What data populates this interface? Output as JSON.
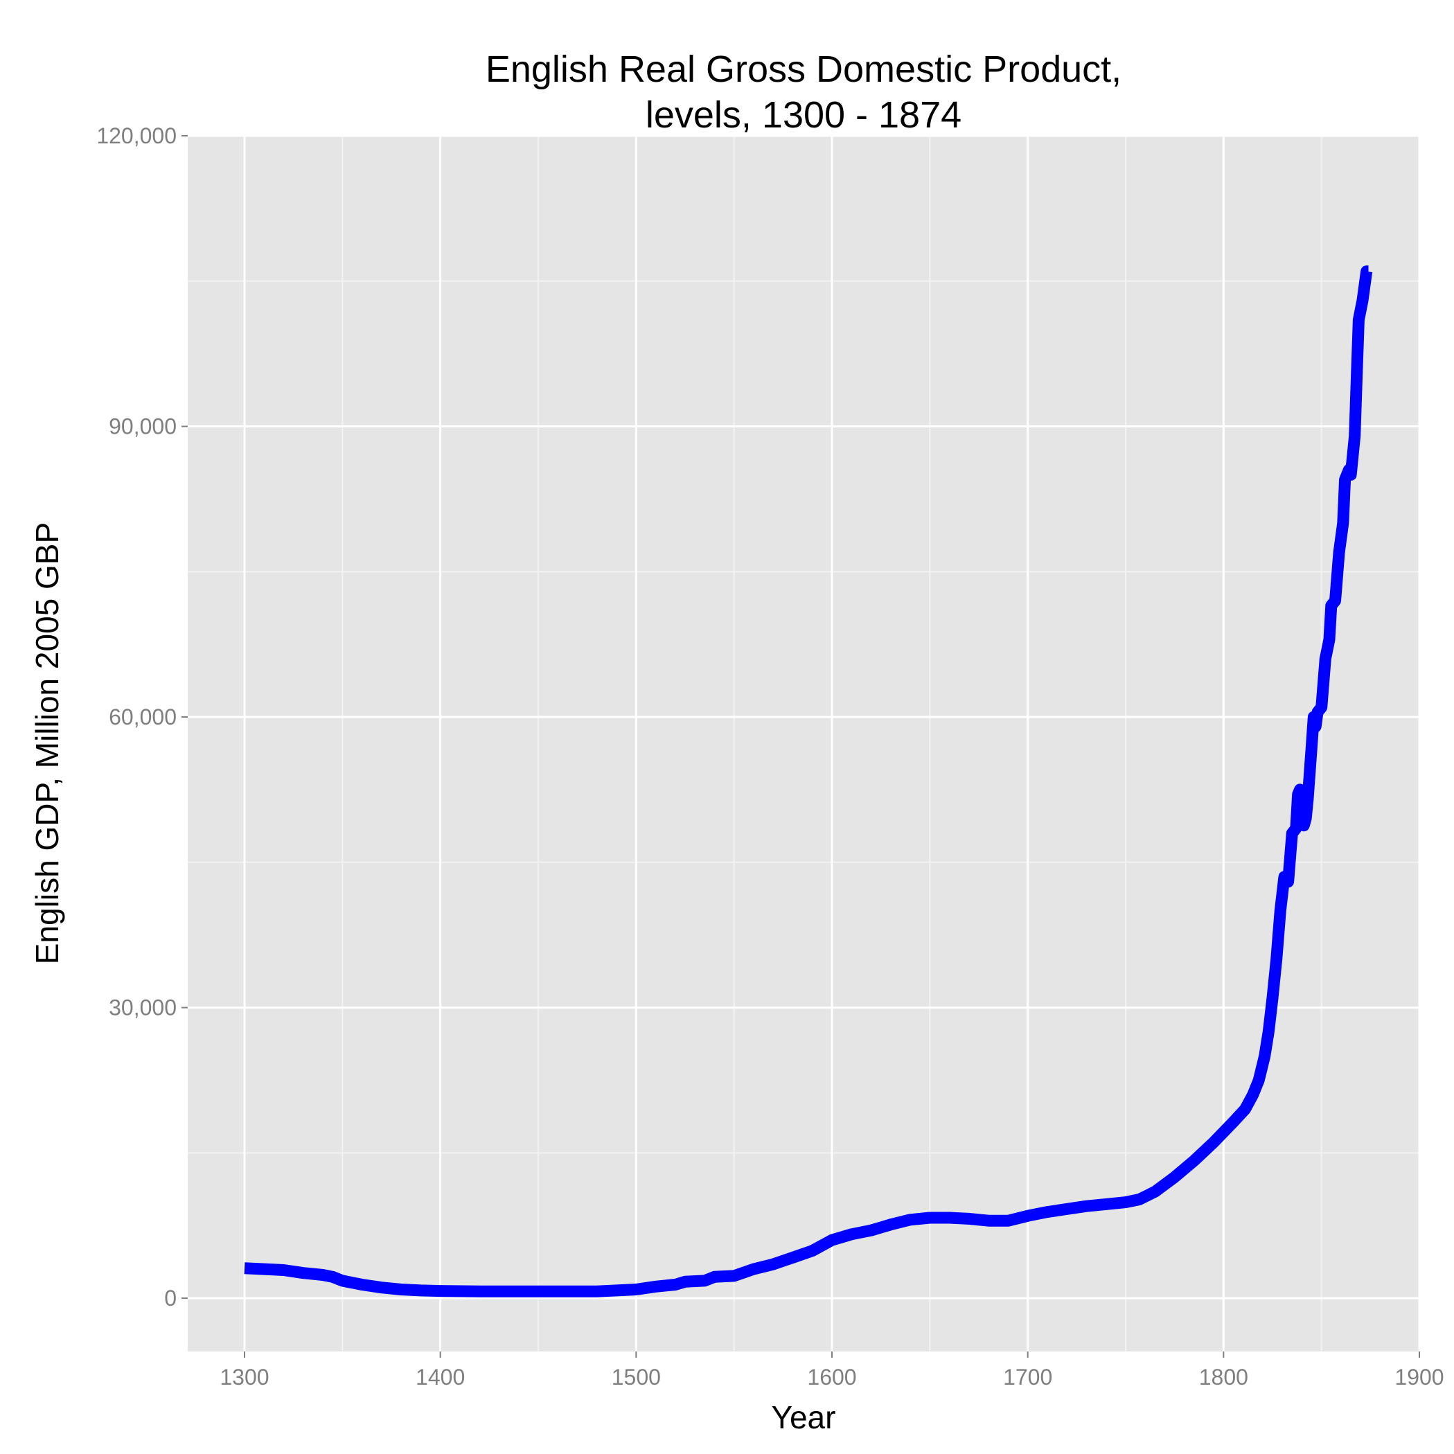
{
  "chart_data": {
    "type": "line",
    "title_lines": [
      "English Real Gross Domestic Product,",
      "levels, 1300 - 1874"
    ],
    "xlabel": "Year",
    "ylabel": "English GDP, Million 2005 GBP",
    "xlim": [
      1271,
      1900
    ],
    "ylim": [
      -5500,
      120000
    ],
    "x_ticks": [
      1300,
      1400,
      1500,
      1600,
      1700,
      1800,
      1900
    ],
    "y_ticks": [
      0,
      30000,
      60000,
      90000,
      120000
    ],
    "x_tick_labels": [
      "1300",
      "1400",
      "1500",
      "1600",
      "1700",
      "1800",
      "1900"
    ],
    "y_tick_labels": [
      "0",
      "30,000",
      "60,000",
      "90,000",
      "120,000"
    ],
    "grid": true,
    "colors": {
      "panel": "#e5e5e5",
      "grid_major": "#ffffff",
      "grid_minor": "#f2f2f2",
      "line": "#0000ff"
    },
    "series": [
      {
        "points": [
          [
            1300,
            3100
          ],
          [
            1310,
            3000
          ],
          [
            1320,
            2900
          ],
          [
            1330,
            2600
          ],
          [
            1340,
            2400
          ],
          [
            1345,
            2200
          ],
          [
            1350,
            1800
          ],
          [
            1360,
            1400
          ],
          [
            1370,
            1100
          ],
          [
            1380,
            900
          ],
          [
            1390,
            800
          ],
          [
            1400,
            750
          ],
          [
            1420,
            700
          ],
          [
            1440,
            700
          ],
          [
            1460,
            700
          ],
          [
            1480,
            700
          ],
          [
            1490,
            800
          ],
          [
            1500,
            900
          ],
          [
            1510,
            1200
          ],
          [
            1520,
            1400
          ],
          [
            1525,
            1700
          ],
          [
            1535,
            1800
          ],
          [
            1540,
            2200
          ],
          [
            1550,
            2300
          ],
          [
            1560,
            3000
          ],
          [
            1570,
            3500
          ],
          [
            1580,
            4200
          ],
          [
            1590,
            4900
          ],
          [
            1600,
            6000
          ],
          [
            1610,
            6600
          ],
          [
            1620,
            7000
          ],
          [
            1630,
            7600
          ],
          [
            1640,
            8100
          ],
          [
            1650,
            8300
          ],
          [
            1660,
            8300
          ],
          [
            1670,
            8200
          ],
          [
            1680,
            8000
          ],
          [
            1690,
            8000
          ],
          [
            1700,
            8500
          ],
          [
            1710,
            8900
          ],
          [
            1720,
            9200
          ],
          [
            1730,
            9500
          ],
          [
            1740,
            9700
          ],
          [
            1750,
            9900
          ],
          [
            1757,
            10200
          ],
          [
            1765,
            11000
          ],
          [
            1775,
            12500
          ],
          [
            1785,
            14200
          ],
          [
            1795,
            16100
          ],
          [
            1805,
            18200
          ],
          [
            1811,
            19500
          ],
          [
            1815,
            21000
          ],
          [
            1818,
            22500
          ],
          [
            1821,
            25000
          ],
          [
            1823,
            27500
          ],
          [
            1825,
            31000
          ],
          [
            1827,
            35000
          ],
          [
            1829,
            40000
          ],
          [
            1831,
            43500
          ],
          [
            1833,
            43000
          ],
          [
            1835,
            48000
          ],
          [
            1837,
            48500
          ],
          [
            1838,
            52000
          ],
          [
            1839,
            52500
          ],
          [
            1840,
            49000
          ],
          [
            1841,
            48800
          ],
          [
            1842,
            49500
          ],
          [
            1843,
            51500
          ],
          [
            1845,
            57000
          ],
          [
            1846,
            60000
          ],
          [
            1847,
            59000
          ],
          [
            1848,
            60500
          ],
          [
            1850,
            61000
          ],
          [
            1852,
            66000
          ],
          [
            1854,
            68000
          ],
          [
            1855,
            71500
          ],
          [
            1857,
            72000
          ],
          [
            1859,
            77000
          ],
          [
            1861,
            80000
          ],
          [
            1862,
            84500
          ],
          [
            1864,
            85500
          ],
          [
            1865,
            85000
          ],
          [
            1867,
            89000
          ],
          [
            1868,
            95000
          ],
          [
            1869,
            101000
          ],
          [
            1871,
            103000
          ],
          [
            1873,
            106000
          ],
          [
            1874,
            106000
          ]
        ]
      }
    ]
  }
}
